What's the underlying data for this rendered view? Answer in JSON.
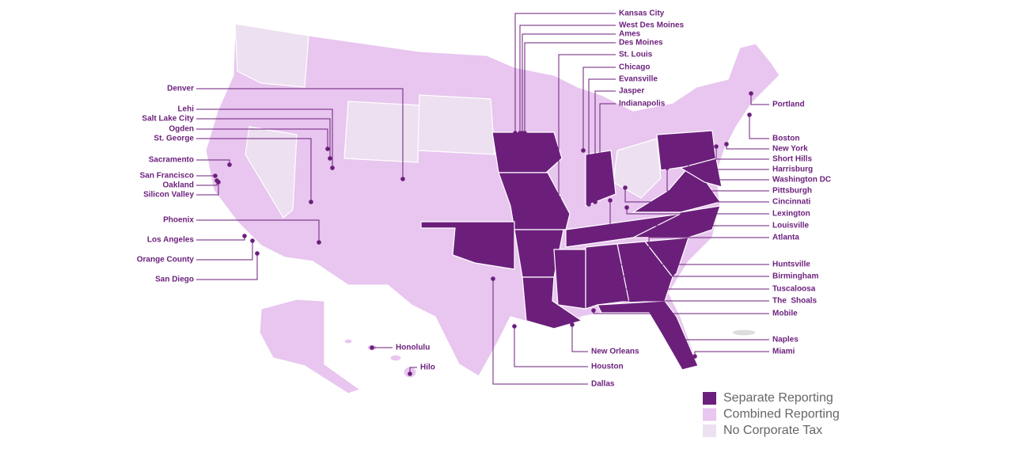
{
  "cities": [
    "Kansas City",
    "West Des Moines",
    "Ames",
    "Des Moines",
    "St. Louis",
    "Chicago",
    "Evansville",
    "Jasper",
    "Indianapolis",
    "Denver",
    "Lehi",
    "Salt Lake City",
    "Ogden",
    "St. George",
    "Sacramento",
    "San Francisco",
    "Oakland",
    "Silicon Valley",
    "Phoenix",
    "Los Angeles",
    "Orange County",
    "San Diego",
    "Portland",
    "Boston",
    "New York",
    "Short Hills",
    "Harrisburg",
    "Washington DC",
    "Pittsburgh",
    "Cincinnati",
    "Lexington",
    "Louisville",
    "Atlanta",
    "Huntsville",
    "Birmingham",
    "Tuscaloosa",
    "The  Shoals",
    "Mobile",
    "Naples",
    "Miami",
    "New Orleans",
    "Houston",
    "Dallas",
    "Honolulu",
    "Hilo"
  ],
  "legend": [
    {
      "label": "Separate Reporting",
      "color": "#6b1f7b"
    },
    {
      "label": "Combined Reporting",
      "color": "#e8c6ef"
    },
    {
      "label": "No Corporate Tax",
      "color": "#ede0f0"
    }
  ]
}
